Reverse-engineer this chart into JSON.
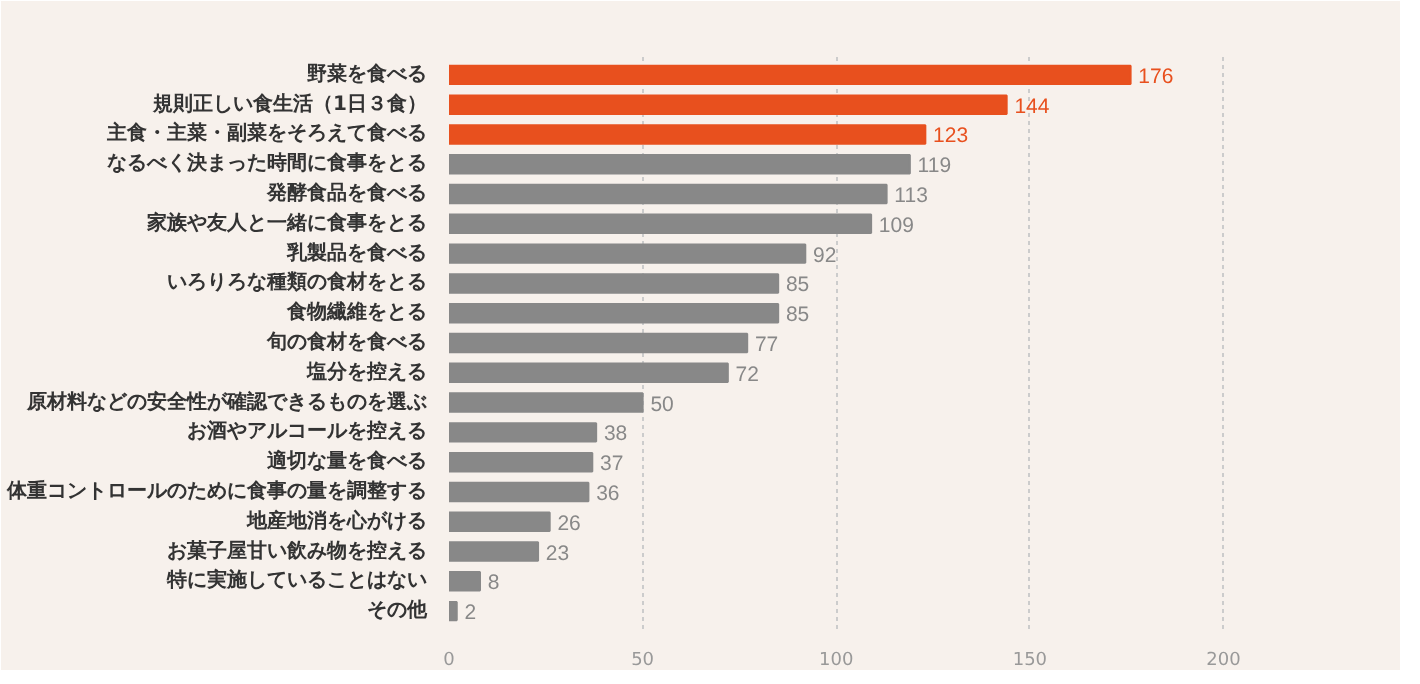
{
  "chart_data": {
    "type": "bar",
    "orientation": "horizontal",
    "categories": [
      "野菜を食べる",
      "規則正しい食生活（1日３食）",
      "主食・主菜・副菜をそろえて食べる",
      "なるべく決まった時間に食事をとる",
      "発酵食品を食べる",
      "家族や友人と一緒に食事をとる",
      "乳製品を食べる",
      "いろりろな種類の食材をとる",
      "食物繊維をとる",
      "旬の食材を食べる",
      "塩分を控える",
      "原材料などの安全性が確認できるものを選ぶ",
      "お酒やアルコールを控える",
      "適切な量を食べる",
      "体重コントロールのために食事の量を調整する",
      "地産地消を心がける",
      "お菓子屋甘い飲み物を控える",
      "特に実施していることはない",
      "その他"
    ],
    "values": [
      176,
      144,
      123,
      119,
      113,
      109,
      92,
      85,
      85,
      77,
      72,
      50,
      38,
      37,
      36,
      26,
      23,
      8,
      2
    ],
    "colors": [
      "#e8501e",
      "#e8501e",
      "#e8501e",
      "#888888",
      "#888888",
      "#888888",
      "#888888",
      "#888888",
      "#888888",
      "#888888",
      "#888888",
      "#888888",
      "#888888",
      "#888888",
      "#888888",
      "#888888",
      "#888888",
      "#888888",
      "#888888"
    ],
    "xlim": [
      0,
      220
    ],
    "xticks": [
      0,
      50,
      100,
      150,
      200
    ],
    "grid": "x",
    "data_labels": true
  }
}
